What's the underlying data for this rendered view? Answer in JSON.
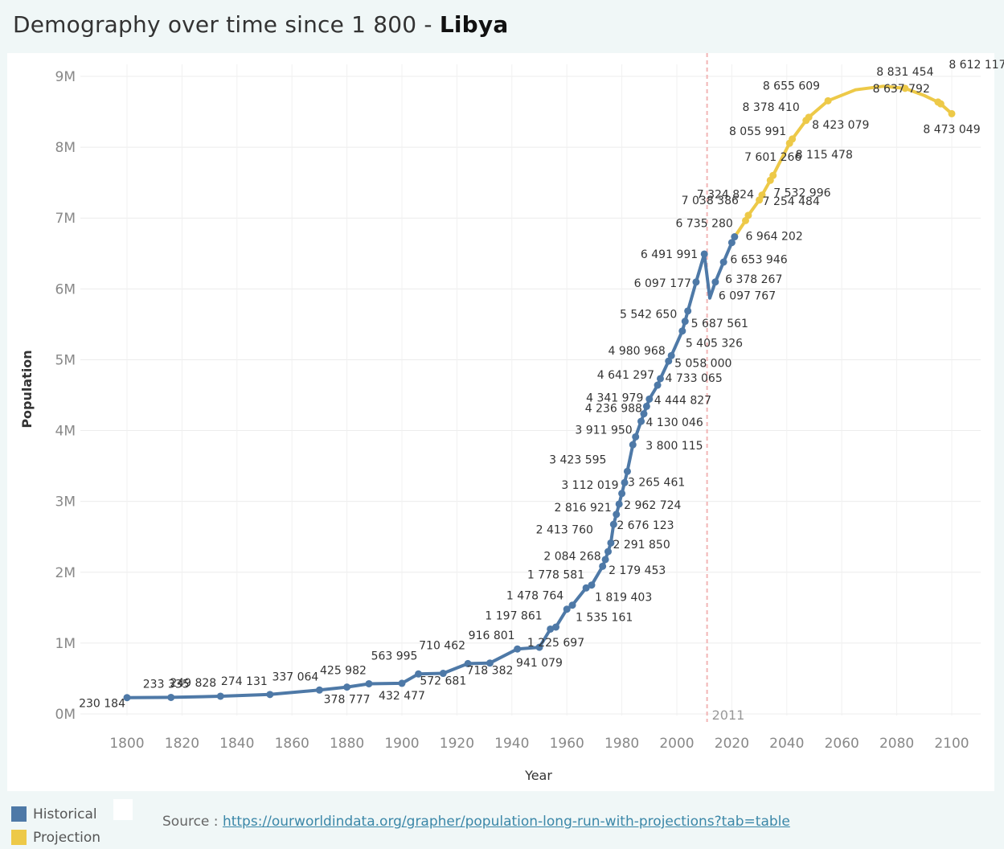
{
  "title": {
    "prefix": "Demography over time since 1 800 - ",
    "country": "Libya"
  },
  "chart_data": {
    "type": "line",
    "xlabel": "Year",
    "ylabel": "Population",
    "xlim": [
      1790,
      2107
    ],
    "ylim": [
      0,
      9300000
    ],
    "x_ticks": [
      1800,
      1820,
      1840,
      1860,
      1880,
      1900,
      1920,
      1940,
      1960,
      1980,
      2000,
      2020,
      2040,
      2060,
      2080,
      2100
    ],
    "y_ticks": [
      {
        "value": 0,
        "label": "0M"
      },
      {
        "value": 1000000,
        "label": "1M"
      },
      {
        "value": 2000000,
        "label": "2M"
      },
      {
        "value": 3000000,
        "label": "3M"
      },
      {
        "value": 4000000,
        "label": "4M"
      },
      {
        "value": 5000000,
        "label": "5M"
      },
      {
        "value": 6000000,
        "label": "6M"
      },
      {
        "value": 7000000,
        "label": "7M"
      },
      {
        "value": 8000000,
        "label": "8M"
      },
      {
        "value": 9000000,
        "label": "9M"
      }
    ],
    "grid": true,
    "reference_line": {
      "x": 2011,
      "label": "2011",
      "color": "#f2b5b5"
    },
    "series": [
      {
        "name": "Historical",
        "color": "#4e79a7",
        "points": [
          {
            "x": 1800,
            "y": 230184,
            "label": "230 184"
          },
          {
            "x": 1816,
            "y": 233335,
            "label": "233 335"
          },
          {
            "x": 1834,
            "y": 249828,
            "label": "249 828"
          },
          {
            "x": 1852,
            "y": 274131,
            "label": "274 131"
          },
          {
            "x": 1870,
            "y": 337064,
            "label": "337 064"
          },
          {
            "x": 1880,
            "y": 378777,
            "label": "378 777"
          },
          {
            "x": 1888,
            "y": 425982,
            "label": "425 982"
          },
          {
            "x": 1900,
            "y": 432477,
            "label": "432 477"
          },
          {
            "x": 1906,
            "y": 563995,
            "label": "563 995"
          },
          {
            "x": 1915,
            "y": 572681,
            "label": "572 681"
          },
          {
            "x": 1924,
            "y": 710462,
            "label": "710 462"
          },
          {
            "x": 1932,
            "y": 718382,
            "label": "718 382"
          },
          {
            "x": 1942,
            "y": 916801,
            "label": "916 801"
          },
          {
            "x": 1950,
            "y": 941079,
            "label": "941 079"
          },
          {
            "x": 1954,
            "y": 1197861,
            "label": "1 197 861"
          },
          {
            "x": 1956,
            "y": 1225697,
            "label": "1 225 697"
          },
          {
            "x": 1960,
            "y": 1478764,
            "label": "1 478 764"
          },
          {
            "x": 1962,
            "y": 1535161,
            "label": "1 535 161"
          },
          {
            "x": 1967,
            "y": 1778581,
            "label": "1 778 581"
          },
          {
            "x": 1969,
            "y": 1819403,
            "label": "1 819 403"
          },
          {
            "x": 1973,
            "y": 2084268,
            "label": "2 084 268"
          },
          {
            "x": 1974,
            "y": 2179453,
            "label": "2 179 453"
          },
          {
            "x": 1975,
            "y": 2291850,
            "label": "2 291 850"
          },
          {
            "x": 1976,
            "y": 2413760,
            "label": "2 413 760"
          },
          {
            "x": 1977,
            "y": 2676123,
            "label": "2 676 123"
          },
          {
            "x": 1978,
            "y": 2816921,
            "label": "2 816 921"
          },
          {
            "x": 1979,
            "y": 2962724,
            "label": "2 962 724"
          },
          {
            "x": 1980,
            "y": 3112019,
            "label": "3 112 019"
          },
          {
            "x": 1981,
            "y": 3265461,
            "label": "3 265 461"
          },
          {
            "x": 1982,
            "y": 3423595,
            "label": "3 423 595"
          },
          {
            "x": 1984,
            "y": 3800115,
            "label": "3 800 115"
          },
          {
            "x": 1985,
            "y": 3911950,
            "label": "3 911 950"
          },
          {
            "x": 1987,
            "y": 4130046,
            "label": "4 130 046"
          },
          {
            "x": 1988,
            "y": 4236988,
            "label": "4 236 988"
          },
          {
            "x": 1989,
            "y": 4341979,
            "label": "4 341 979"
          },
          {
            "x": 1990,
            "y": 4444827,
            "label": "4 444 827"
          },
          {
            "x": 1993,
            "y": 4641297,
            "label": "4 641 297"
          },
          {
            "x": 1994,
            "y": 4733065,
            "label": "4 733 065"
          },
          {
            "x": 1997,
            "y": 4980968,
            "label": "4 980 968"
          },
          {
            "x": 1998,
            "y": 5058000,
            "label": "5 058 000"
          },
          {
            "x": 2002,
            "y": 5405326,
            "label": "5 405 326"
          },
          {
            "x": 2003,
            "y": 5542650,
            "label": "5 542 650"
          },
          {
            "x": 2004,
            "y": 5687561,
            "label": "5 687 561"
          },
          {
            "x": 2007,
            "y": 6097177,
            "label": "6 097 177"
          },
          {
            "x": 2010,
            "y": 6491991,
            "label": "6 491 991"
          },
          {
            "x": 2012,
            "y": 5870000,
            "label": ""
          },
          {
            "x": 2014,
            "y": 6097767,
            "label": "6 097 767"
          },
          {
            "x": 2017,
            "y": 6378267,
            "label": "6 378 267"
          },
          {
            "x": 2020,
            "y": 6653946,
            "label": "6 653 946"
          },
          {
            "x": 2021,
            "y": 6735280,
            "label": "6 735 280"
          }
        ]
      },
      {
        "name": "Projection",
        "color": "#edc948",
        "points": [
          {
            "x": 2022,
            "y": 6790000,
            "label": ""
          },
          {
            "x": 2025,
            "y": 6964202,
            "label": "6 964 202"
          },
          {
            "x": 2026,
            "y": 7038386,
            "label": "7 038 386"
          },
          {
            "x": 2030,
            "y": 7254484,
            "label": "7 254 484"
          },
          {
            "x": 2031,
            "y": 7324824,
            "label": "7 324 824"
          },
          {
            "x": 2034,
            "y": 7532996,
            "label": "7 532 996"
          },
          {
            "x": 2035,
            "y": 7601266,
            "label": "7 601 266"
          },
          {
            "x": 2041,
            "y": 8055991,
            "label": "8 055 991"
          },
          {
            "x": 2042,
            "y": 8115478,
            "label": "8 115 478"
          },
          {
            "x": 2047,
            "y": 8378410,
            "label": "8 378 410"
          },
          {
            "x": 2048,
            "y": 8423079,
            "label": "8 423 079"
          },
          {
            "x": 2055,
            "y": 8655609,
            "label": "8 655 609"
          },
          {
            "x": 2065,
            "y": 8810000,
            "label": ""
          },
          {
            "x": 2075,
            "y": 8860000,
            "label": ""
          },
          {
            "x": 2083,
            "y": 8831454,
            "label": "8 831 454"
          },
          {
            "x": 2090,
            "y": 8730000,
            "label": ""
          },
          {
            "x": 2095,
            "y": 8637792,
            "label": "8 637 792"
          },
          {
            "x": 2096,
            "y": 8612117,
            "label": "8 612 117"
          },
          {
            "x": 2100,
            "y": 8473049,
            "label": "8 473 049"
          }
        ]
      }
    ],
    "legend": [
      {
        "name": "Historical",
        "color": "#4e79a7"
      },
      {
        "name": "Projection",
        "color": "#edc948"
      }
    ]
  },
  "source": {
    "prefix": "Source : ",
    "link": "https://ourworldindata.org/grapher/population-long-run-with-projections?tab=table"
  }
}
